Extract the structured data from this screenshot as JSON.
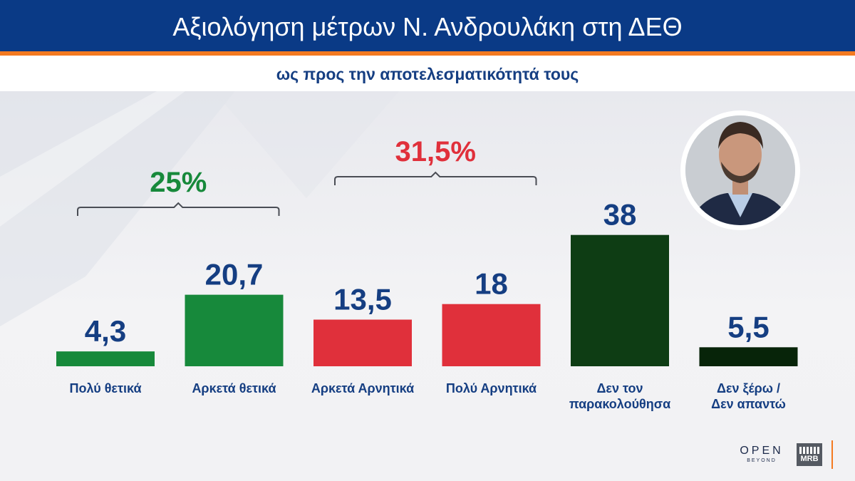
{
  "header": {
    "title": "Αξιολόγηση μέτρων Ν. Ανδρουλάκη στη ΔΕΘ",
    "subtitle": "ως προς την αποτελεσματικότητά τους"
  },
  "colors": {
    "header_blue": "#0a3a86",
    "accent_orange": "#f47a20",
    "value_blue": "#153e82",
    "positive_green": "#17893b",
    "negative_red": "#e0303b",
    "dark_green": "#0e3d14",
    "darkest_green": "#072409"
  },
  "chart_data": {
    "type": "bar",
    "categories": [
      "Πολύ θετικά",
      "Αρκετά θετικά",
      "Αρκετά Αρνητικά",
      "Πολύ Αρνητικά",
      "Δεν τον παρακολούθησα",
      "Δεν ξέρω / Δεν απαντώ"
    ],
    "category_lines": [
      [
        "Πολύ θετικά"
      ],
      [
        "Αρκετά θετικά"
      ],
      [
        "Αρκετά Αρνητικά"
      ],
      [
        "Πολύ Αρνητικά"
      ],
      [
        "Δεν τον",
        "παρακολούθησα"
      ],
      [
        "Δεν ξέρω /",
        "Δεν απαντώ"
      ]
    ],
    "values": [
      4.3,
      20.7,
      13.5,
      18,
      38,
      5.5
    ],
    "value_labels": [
      "4,3",
      "20,7",
      "13,5",
      "18",
      "38",
      "5,5"
    ],
    "bar_colors": [
      "#17893b",
      "#17893b",
      "#e0303b",
      "#e0303b",
      "#0e3d14",
      "#072409"
    ],
    "groups": [
      {
        "label": "25%",
        "from": 0,
        "to": 1,
        "color": "#17893b"
      },
      {
        "label": "31,5%",
        "from": 2,
        "to": 3,
        "color": "#e0303b"
      }
    ],
    "ylim": [
      0,
      40
    ],
    "grid": false,
    "legend": "none"
  },
  "branding": {
    "open_logo": "OPEN",
    "open_tagline": "BEYOND",
    "mrb_logo": "MRB"
  },
  "icons": [
    "person-portrait",
    "open-logo",
    "mrb-logo"
  ]
}
